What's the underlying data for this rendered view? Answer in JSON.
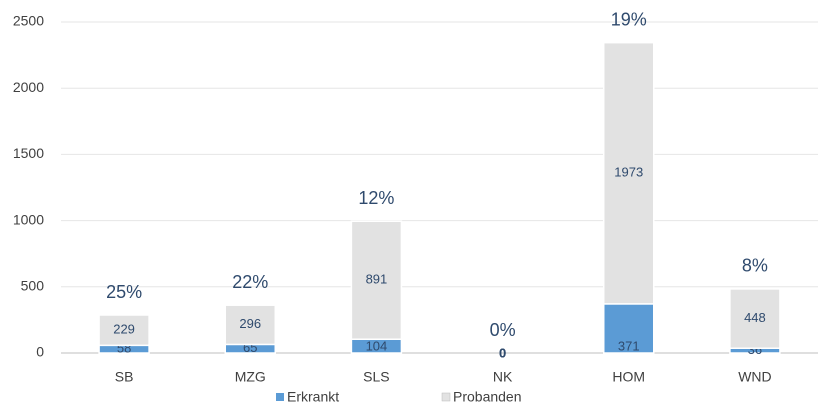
{
  "chart_data": {
    "type": "stacked_bar",
    "categories": [
      "SB",
      "MZG",
      "SLS",
      "NK",
      "HOM",
      "WND"
    ],
    "series": [
      {
        "name": "Erkrankt",
        "color": "#5b9bd5",
        "values": [
          58,
          65,
          104,
          0,
          371,
          36
        ]
      },
      {
        "name": "Probanden",
        "color": "#e2e2e2",
        "values": [
          229,
          296,
          891,
          0,
          1973,
          448
        ]
      }
    ],
    "annotations": [
      "25%",
      "22%",
      "12%",
      "0%",
      "19%",
      "8%"
    ],
    "ylim": [
      0,
      2500
    ],
    "yticks": [
      0,
      500,
      1000,
      1500,
      2000,
      2500
    ],
    "grid": true,
    "legend": "bottom"
  }
}
